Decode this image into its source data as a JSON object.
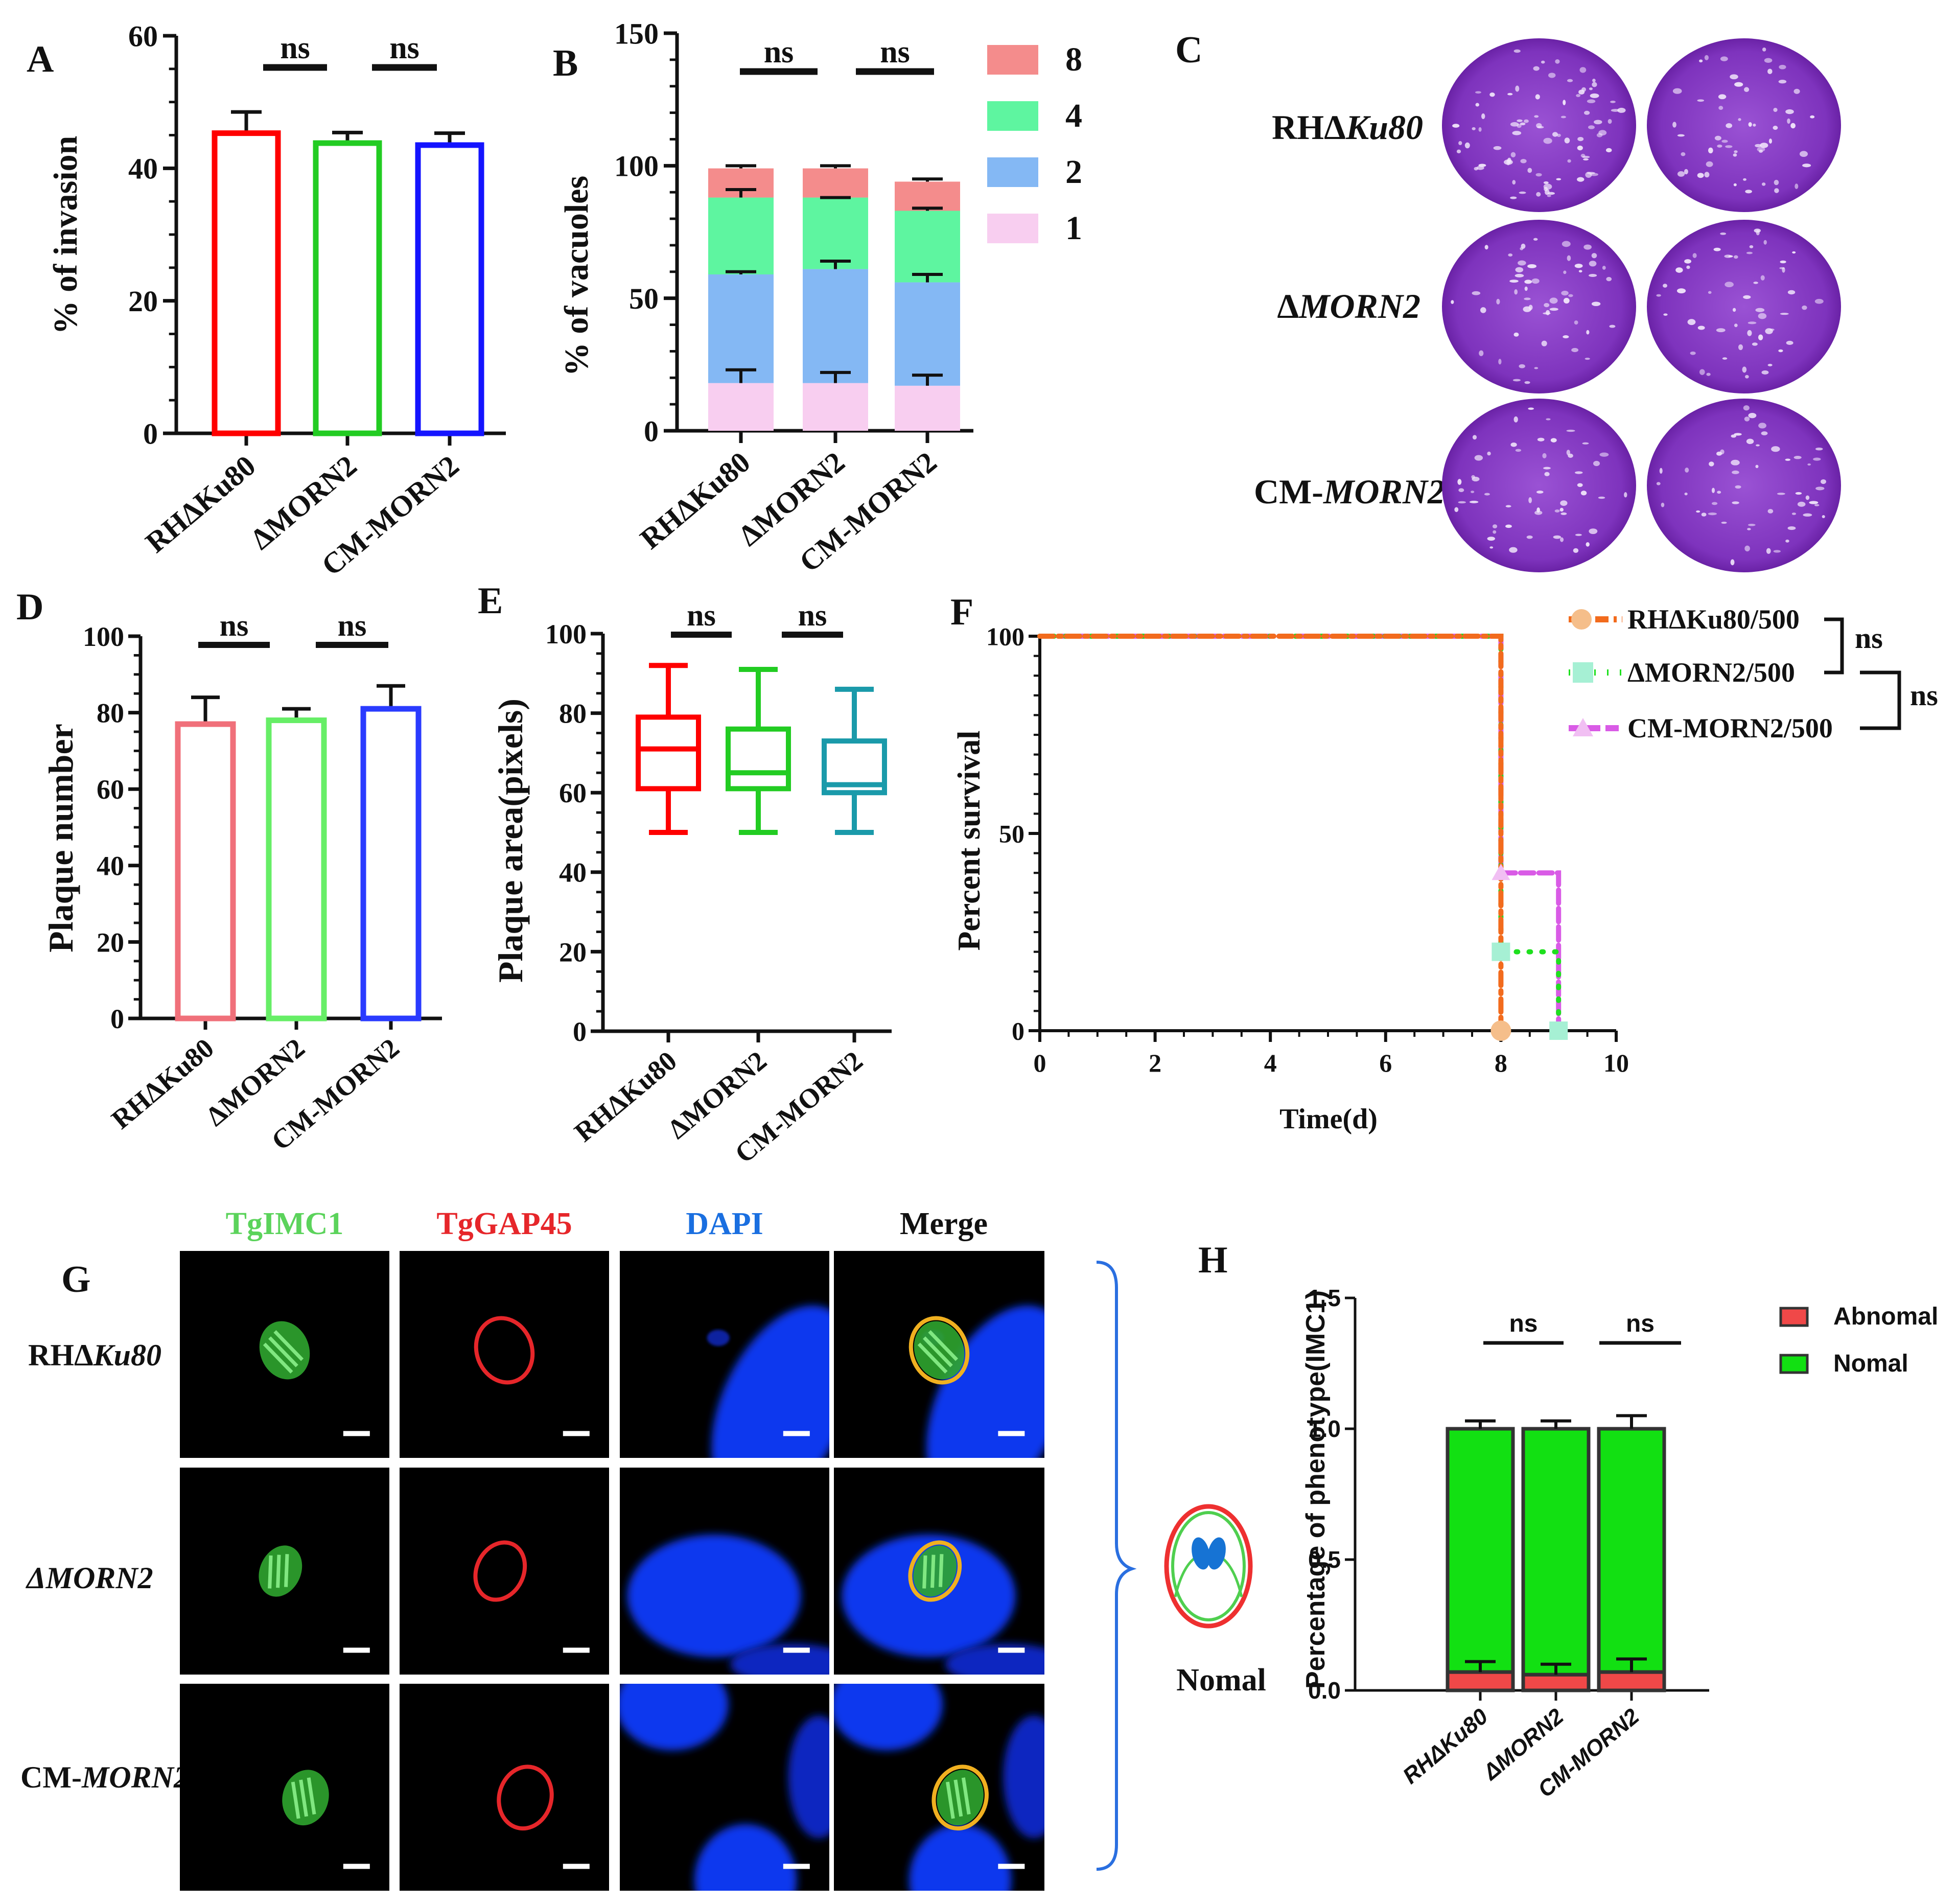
{
  "panel_labels": {
    "A": "A",
    "B": "B",
    "C": "C",
    "D": "D",
    "E": "E",
    "F": "F",
    "G": "G",
    "H": "H"
  },
  "ns": "ns",
  "groups": [
    "RHΔKu80",
    "ΔMORN2",
    "CM-MORN2"
  ],
  "colors": {
    "red": "#ff0000",
    "green": "#22cc22",
    "blue": "#1414ff",
    "pink": "#f0707a",
    "lightgreen": "#66ee66",
    "royal": "#2a3bff",
    "teal": "#1a9aaa",
    "seg8": "#f48c8c",
    "seg4": "#5ef5a0",
    "seg2": "#84b8f4",
    "seg1": "#f8cef0",
    "orange": "#f26b1d",
    "peach": "#f5be8a",
    "dotgreen": "#1ee01e",
    "mint": "#a6f0d4",
    "magenta": "#d95be6",
    "lilac": "#f1bff3",
    "imc_green": "#5bd35b",
    "gap_red": "#e6262a",
    "dapi_blue": "#1a6fe0",
    "hgreen": "#12e012",
    "hred": "#f04848",
    "plaque": "#8a3ec6"
  },
  "chart_data": [
    {
      "panel": "A",
      "type": "bar",
      "categories": [
        "RHΔKu80",
        "ΔMORN2",
        "CM-MORN2"
      ],
      "values": [
        45.3,
        43.8,
        43.5
      ],
      "errors": [
        3.2,
        1.6,
        1.8
      ],
      "ylabel": "% of invasion",
      "ylim": [
        0,
        60
      ],
      "yticks": [
        0,
        20,
        40,
        60
      ],
      "comparisons": [
        "ns",
        "ns"
      ]
    },
    {
      "panel": "B",
      "type": "bar",
      "stacked": true,
      "categories": [
        "RHΔKu80",
        "ΔMORN2",
        "CM-MORN2"
      ],
      "series": [
        {
          "name": "1",
          "values": [
            18,
            18,
            17
          ],
          "errors": [
            5,
            4,
            4
          ]
        },
        {
          "name": "2",
          "values": [
            41,
            43,
            39
          ],
          "errors": [
            1,
            3,
            3
          ]
        },
        {
          "name": "4",
          "values": [
            29,
            27,
            27
          ],
          "errors": [
            3,
            0,
            1
          ]
        },
        {
          "name": "8",
          "values": [
            11,
            11,
            11
          ],
          "errors": [
            1,
            1,
            1
          ]
        }
      ],
      "legend": [
        "8",
        "4",
        "2",
        "1"
      ],
      "ylabel": "% of vacuoles",
      "ylim": [
        0,
        150
      ],
      "yticks": [
        0,
        50,
        100,
        150
      ],
      "comparisons": [
        "ns",
        "ns"
      ]
    },
    {
      "panel": "C",
      "type": "image",
      "rows": [
        "RHΔKu80",
        "ΔMORN2",
        "CM-MORN2"
      ]
    },
    {
      "panel": "D",
      "type": "bar",
      "categories": [
        "RHΔKu80",
        "ΔMORN2",
        "CM-MORN2"
      ],
      "values": [
        77,
        78,
        81
      ],
      "errors": [
        7,
        3,
        6
      ],
      "ylabel": "Plaque number",
      "ylim": [
        0,
        100
      ],
      "yticks": [
        0,
        20,
        40,
        60,
        80,
        100
      ],
      "comparisons": [
        "ns",
        "ns"
      ]
    },
    {
      "panel": "E",
      "type": "box",
      "categories": [
        "RHΔKu80",
        "ΔMORN2",
        "CM-MORN2"
      ],
      "boxes": [
        {
          "min": 50,
          "q1": 61,
          "median": 71,
          "q3": 79,
          "max": 92
        },
        {
          "min": 50,
          "q1": 61,
          "median": 65,
          "q3": 76,
          "max": 91
        },
        {
          "min": 50,
          "q1": 60,
          "median": 62,
          "q3": 73,
          "max": 86
        }
      ],
      "ylabel": "Plaque area(pixels)",
      "ylim": [
        0,
        100
      ],
      "yticks": [
        0,
        20,
        40,
        60,
        80,
        100
      ],
      "comparisons": [
        "ns",
        "ns"
      ]
    },
    {
      "panel": "F",
      "type": "line",
      "subtype": "survival",
      "xlabel": "Time(d)",
      "ylabel": "Percent survival",
      "xlim": [
        0,
        10
      ],
      "xticks": [
        0,
        2,
        4,
        6,
        8,
        10
      ],
      "ylim": [
        0,
        100
      ],
      "yticks": [
        0,
        50,
        100
      ],
      "series": [
        {
          "name": "RHΔKu80/500",
          "points": [
            [
              0,
              100
            ],
            [
              8,
              100
            ],
            [
              8,
              0
            ]
          ]
        },
        {
          "name": "ΔMORN2/500",
          "points": [
            [
              0,
              100
            ],
            [
              8,
              100
            ],
            [
              8,
              20
            ],
            [
              9,
              20
            ],
            [
              9,
              0
            ]
          ]
        },
        {
          "name": "CM-MORN2/500",
          "points": [
            [
              0,
              100
            ],
            [
              8,
              100
            ],
            [
              8,
              40
            ],
            [
              9,
              40
            ],
            [
              9,
              0
            ]
          ]
        }
      ],
      "comparisons": [
        "ns",
        "ns"
      ]
    },
    {
      "panel": "H",
      "type": "bar",
      "stacked": true,
      "categories": [
        "RHΔKu80",
        "ΔMORN2",
        "CM-MORN2"
      ],
      "series": [
        {
          "name": "Abnomal",
          "values": [
            0.07,
            0.06,
            0.07
          ],
          "errors": [
            0.04,
            0.04,
            0.05
          ]
        },
        {
          "name": "Nomal",
          "values": [
            0.93,
            0.94,
            0.93
          ],
          "errors": [
            0.03,
            0.03,
            0.05
          ]
        }
      ],
      "ylabel": "Percentage of phenotype(IMC1)",
      "ylim": [
        0,
        1.5
      ],
      "yticks": [
        "0.0",
        "0.5",
        "1.0",
        "1.5"
      ],
      "comparisons": [
        "ns",
        "ns"
      ]
    }
  ],
  "panelG": {
    "columns": [
      "TgIMC1",
      "TgGAP45",
      "DAPI",
      "Merge"
    ],
    "rows": [
      "RHΔKu80",
      "ΔMORN2",
      "CM-MORN2"
    ],
    "schematic_label": "Nomal"
  }
}
